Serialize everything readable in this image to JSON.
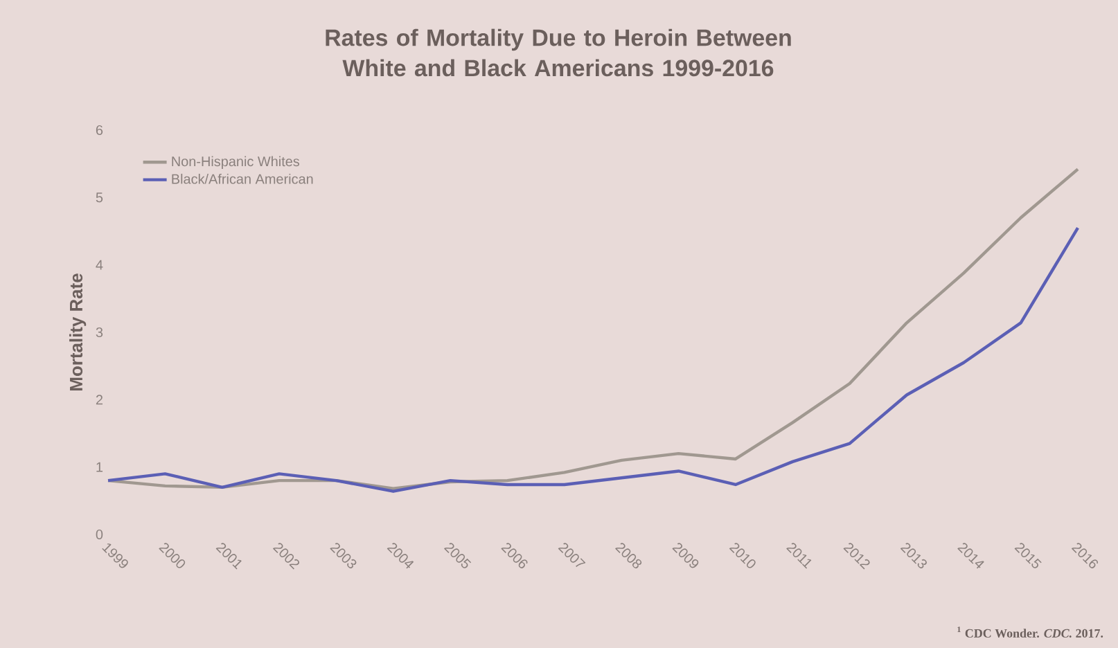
{
  "chart_data": {
    "type": "line",
    "title": "Rates of Mortality Due to Heroin Between White and Black Americans 1999-2016",
    "ylabel": "Mortality Rate",
    "categories": [
      "1999",
      "2000",
      "2001",
      "2002",
      "2003",
      "2004",
      "2005",
      "2006",
      "2007",
      "2008",
      "2009",
      "2010",
      "2011",
      "2012",
      "2013",
      "2014",
      "2015",
      "2016"
    ],
    "series": [
      {
        "name": "Non-Hispanic Whites",
        "color": "#a09890",
        "values": [
          0.8,
          0.72,
          0.7,
          0.8,
          0.8,
          0.68,
          0.78,
          0.8,
          0.92,
          1.1,
          1.2,
          1.12,
          1.66,
          2.24,
          3.14,
          3.88,
          4.7,
          5.42
        ]
      },
      {
        "name": "Black/African American",
        "color": "#5b5fb5",
        "values": [
          0.8,
          0.9,
          0.7,
          0.9,
          0.8,
          0.64,
          0.8,
          0.74,
          0.74,
          0.84,
          0.94,
          0.74,
          1.08,
          1.35,
          2.07,
          2.55,
          3.14,
          4.55
        ]
      }
    ],
    "ylim": [
      0,
      6
    ],
    "yticks": [
      0,
      1,
      2,
      3,
      4,
      5,
      6
    ],
    "grid": false,
    "legend": "top left",
    "marker": "none",
    "line_style": "solid",
    "annotations": [
      "$^{1}$ CDC Wonder. *CDC.* 2017."
    ]
  }
}
